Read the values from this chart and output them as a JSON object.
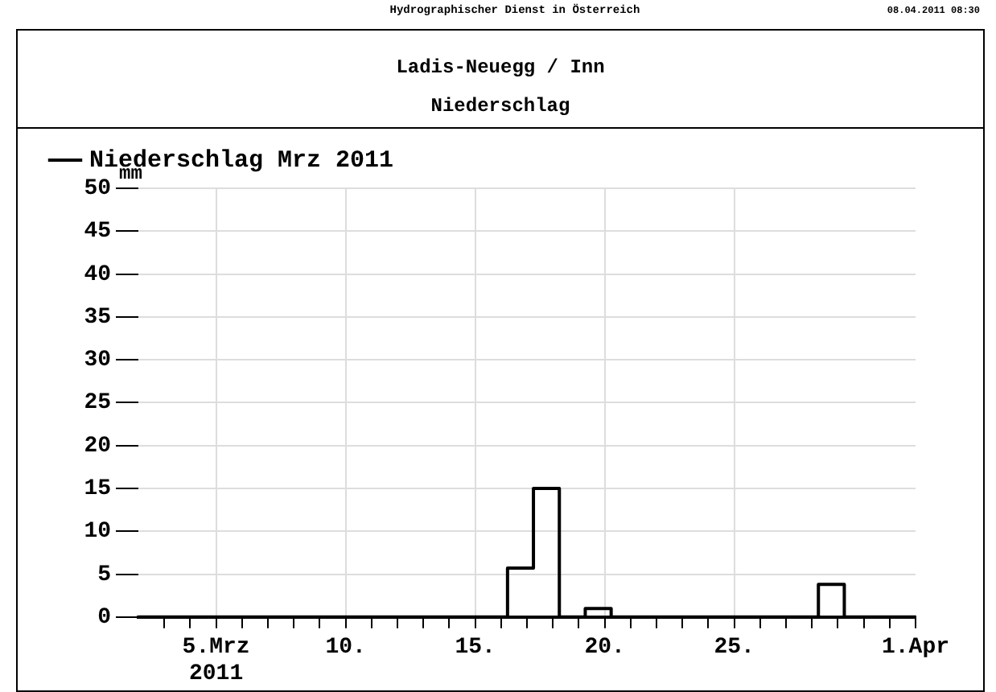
{
  "chart_data": {
    "type": "step",
    "title": "Ladis-Neuegg / Inn",
    "subtitle": "Niederschlag",
    "ylabel": "mm",
    "annotations": [
      "Hydrographischer Dienst in Österreich",
      "08.04.2011 08:30"
    ],
    "x": [
      2,
      16.25,
      17.25,
      18.25,
      19.25,
      20.25,
      28.25,
      29.25,
      32
    ],
    "series": [
      {
        "name": "Niederschlag Mrz 2011",
        "color": "#000000",
        "values": [
          0,
          5.7,
          15,
          0,
          1,
          0,
          3.8,
          0,
          0
        ]
      }
    ],
    "xlim": [
      2,
      32
    ],
    "xticks": [
      {
        "value": 3,
        "label": null
      },
      {
        "value": 4,
        "label": null
      },
      {
        "value": 5,
        "label": "5.Mrz\n2011"
      },
      {
        "value": 6,
        "label": null
      },
      {
        "value": 7,
        "label": null
      },
      {
        "value": 8,
        "label": null
      },
      {
        "value": 9,
        "label": null
      },
      {
        "value": 10,
        "label": "10."
      },
      {
        "value": 11,
        "label": null
      },
      {
        "value": 12,
        "label": null
      },
      {
        "value": 13,
        "label": null
      },
      {
        "value": 14,
        "label": null
      },
      {
        "value": 15,
        "label": "15."
      },
      {
        "value": 16,
        "label": null
      },
      {
        "value": 17,
        "label": null
      },
      {
        "value": 18,
        "label": null
      },
      {
        "value": 19,
        "label": null
      },
      {
        "value": 20,
        "label": "20."
      },
      {
        "value": 21,
        "label": null
      },
      {
        "value": 22,
        "label": null
      },
      {
        "value": 23,
        "label": null
      },
      {
        "value": 24,
        "label": null
      },
      {
        "value": 25,
        "label": "25."
      },
      {
        "value": 26,
        "label": null
      },
      {
        "value": 27,
        "label": null
      },
      {
        "value": 28,
        "label": null
      },
      {
        "value": 29,
        "label": null
      },
      {
        "value": 30,
        "label": null
      },
      {
        "value": 31,
        "label": null
      },
      {
        "value": 32,
        "label": "1.Apr"
      }
    ],
    "ylim": [
      0,
      50
    ],
    "yticks": [
      0,
      5,
      10,
      15,
      20,
      25,
      30,
      35,
      40,
      45,
      50
    ],
    "grid": true,
    "legend": "top left",
    "marker": "none",
    "line_style": "solid"
  }
}
